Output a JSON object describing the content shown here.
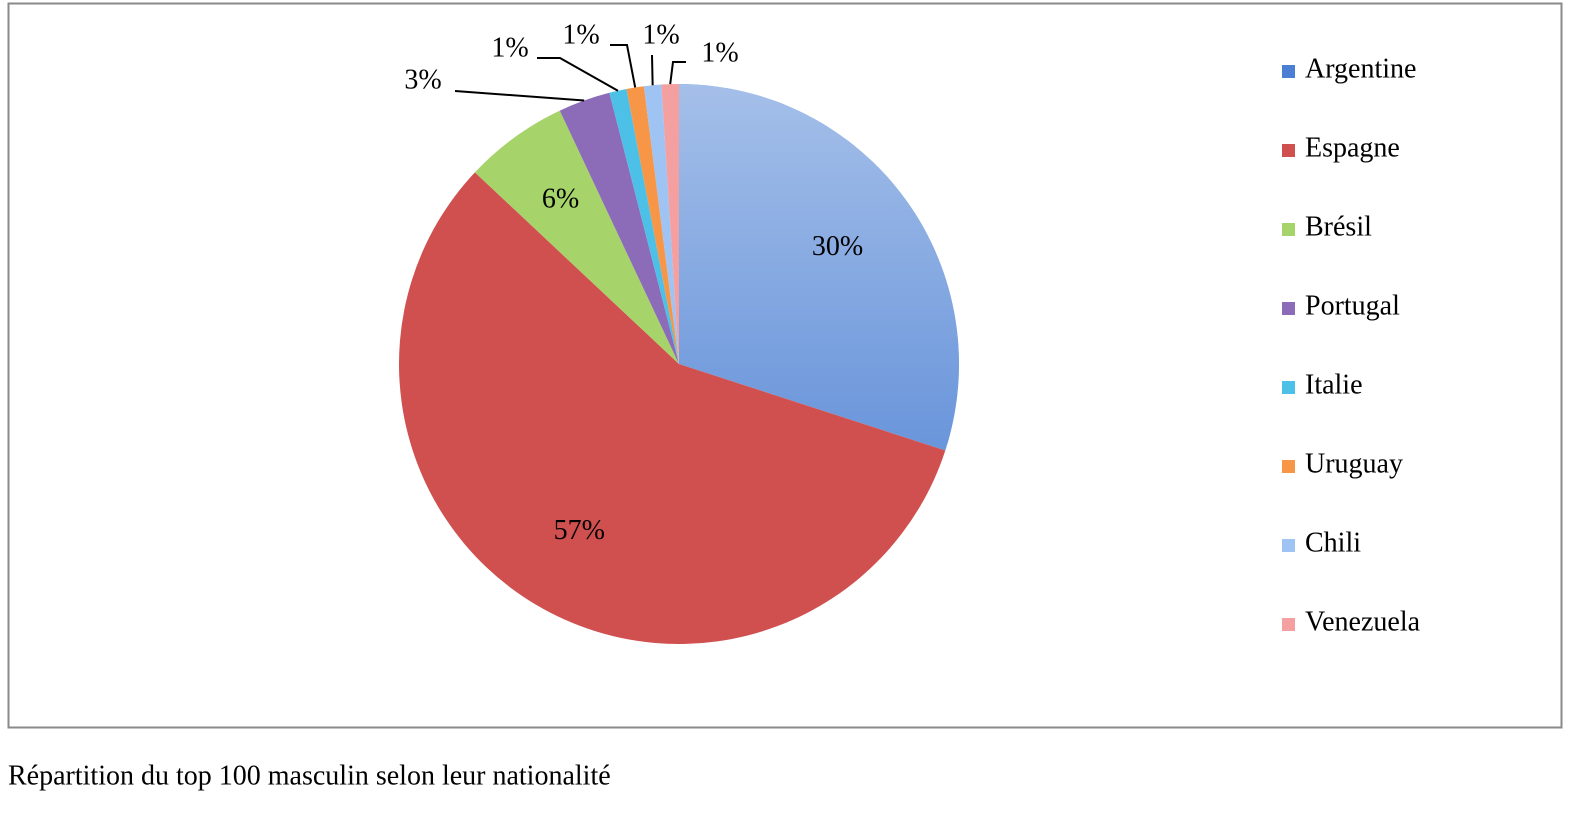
{
  "chart_data": {
    "type": "pie",
    "title": "Répartition du top 100 masculin selon leur nationalité",
    "categories": [
      "Argentine",
      "Espagne",
      "Brésil",
      "Portugal",
      "Italie",
      "Uruguay",
      "Chili",
      "Venezuela"
    ],
    "values": [
      30,
      57,
      6,
      3,
      1,
      1,
      1,
      1
    ],
    "value_labels": [
      "30%",
      "57%",
      "6%",
      "3%",
      "1%",
      "1%",
      "1%",
      "1%"
    ],
    "colors": [
      "#4a7fd3",
      "#d0504f",
      "#a6d36a",
      "#8c6bb8",
      "#4cc0e6",
      "#f79646",
      "#9fc3f2",
      "#f4a0a0"
    ],
    "legend": "right"
  }
}
